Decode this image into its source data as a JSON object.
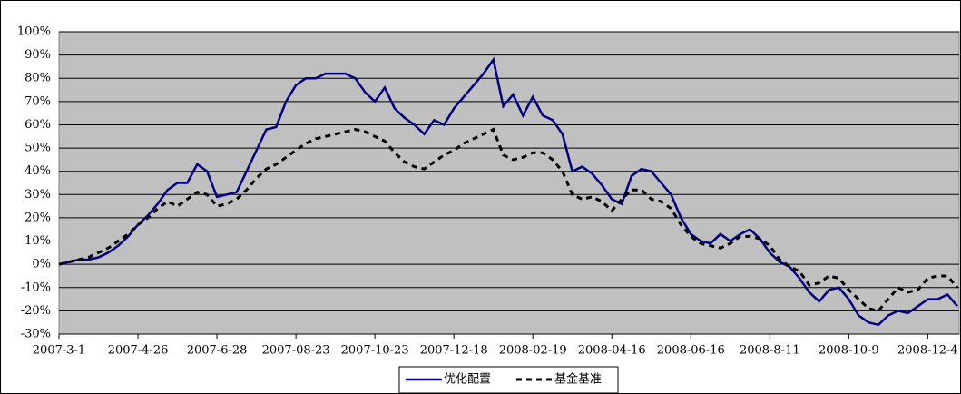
{
  "chart_data": {
    "type": "line",
    "categories": [
      "2007-3-1",
      null,
      null,
      null,
      null,
      null,
      null,
      null,
      "2007-4-26",
      null,
      null,
      null,
      null,
      null,
      null,
      null,
      "2007-6-28",
      null,
      null,
      null,
      null,
      null,
      null,
      null,
      "2007-08-23",
      null,
      null,
      null,
      null,
      null,
      null,
      null,
      "2007-10-23",
      null,
      null,
      null,
      null,
      null,
      null,
      null,
      "2007-12-18",
      null,
      null,
      null,
      null,
      null,
      null,
      null,
      "2008-02-19",
      null,
      null,
      null,
      null,
      null,
      null,
      null,
      "2008-04-16",
      null,
      null,
      null,
      null,
      null,
      null,
      null,
      "2008-06-16",
      null,
      null,
      null,
      null,
      null,
      null,
      null,
      "2008-8-11",
      null,
      null,
      null,
      null,
      null,
      null,
      null,
      "2008-10-9",
      null,
      null,
      null,
      null,
      null,
      null,
      null,
      "2008-12-4",
      null,
      null,
      null
    ],
    "series": [
      {
        "name": "优化配置",
        "color": "#000080",
        "dash": false,
        "values": [
          0,
          1,
          2,
          2,
          3,
          5,
          8,
          12,
          17,
          21,
          26,
          32,
          35,
          35,
          43,
          40,
          29,
          30,
          31,
          40,
          49,
          58,
          59,
          70,
          77,
          80,
          80,
          82,
          82,
          82,
          80,
          74,
          70,
          76,
          67,
          63,
          60,
          56,
          62,
          60,
          67,
          72,
          77,
          82,
          88,
          68,
          73,
          64,
          72,
          64,
          62,
          56,
          40,
          42,
          39,
          34,
          28,
          26,
          38,
          41,
          40,
          35,
          30,
          20,
          13,
          10,
          9,
          13,
          10,
          13,
          15,
          11,
          5,
          1,
          -1,
          -6,
          -12,
          -16,
          -11,
          -10,
          -15,
          -22,
          -25,
          -26,
          -22,
          -20,
          -21,
          -18,
          -15,
          -15,
          -13,
          -18
        ]
      },
      {
        "name": "基金基准",
        "color": "#000000",
        "dash": true,
        "values": [
          0,
          1,
          2,
          3,
          5,
          7,
          10,
          13,
          17,
          20,
          24,
          27,
          25,
          28,
          31,
          30,
          25,
          26,
          28,
          32,
          37,
          41,
          43,
          46,
          49,
          52,
          54,
          55,
          56,
          57,
          58,
          57,
          55,
          53,
          48,
          44,
          42,
          41,
          44,
          47,
          49,
          52,
          54,
          56,
          58,
          47,
          45,
          46,
          48,
          48,
          45,
          40,
          30,
          28,
          29,
          27,
          23,
          28,
          32,
          32,
          28,
          27,
          24,
          17,
          12,
          9,
          8,
          7,
          9,
          12,
          12,
          11,
          8,
          2,
          -1,
          -3,
          -9,
          -8,
          -5,
          -6,
          -11,
          -15,
          -19,
          -20,
          -15,
          -10,
          -12,
          -11,
          -6,
          -5,
          -5,
          -10
        ]
      }
    ],
    "ylim": [
      -30,
      100
    ],
    "yticks": [
      {
        "value": -30,
        "label": "-30%"
      },
      {
        "value": -20,
        "label": "-20%"
      },
      {
        "value": -10,
        "label": "-10%"
      },
      {
        "value": 0,
        "label": "0%"
      },
      {
        "value": 10,
        "label": "10%"
      },
      {
        "value": 20,
        "label": "20%"
      },
      {
        "value": 30,
        "label": "30%"
      },
      {
        "value": 40,
        "label": "40%"
      },
      {
        "value": 50,
        "label": "50%"
      },
      {
        "value": 60,
        "label": "60%"
      },
      {
        "value": 70,
        "label": "70%"
      },
      {
        "value": 80,
        "label": "80%"
      },
      {
        "value": 90,
        "label": "90%"
      },
      {
        "value": 100,
        "label": "100%"
      }
    ],
    "grid": true,
    "plot_background": "#c0c0c0",
    "legend": "bottom"
  }
}
